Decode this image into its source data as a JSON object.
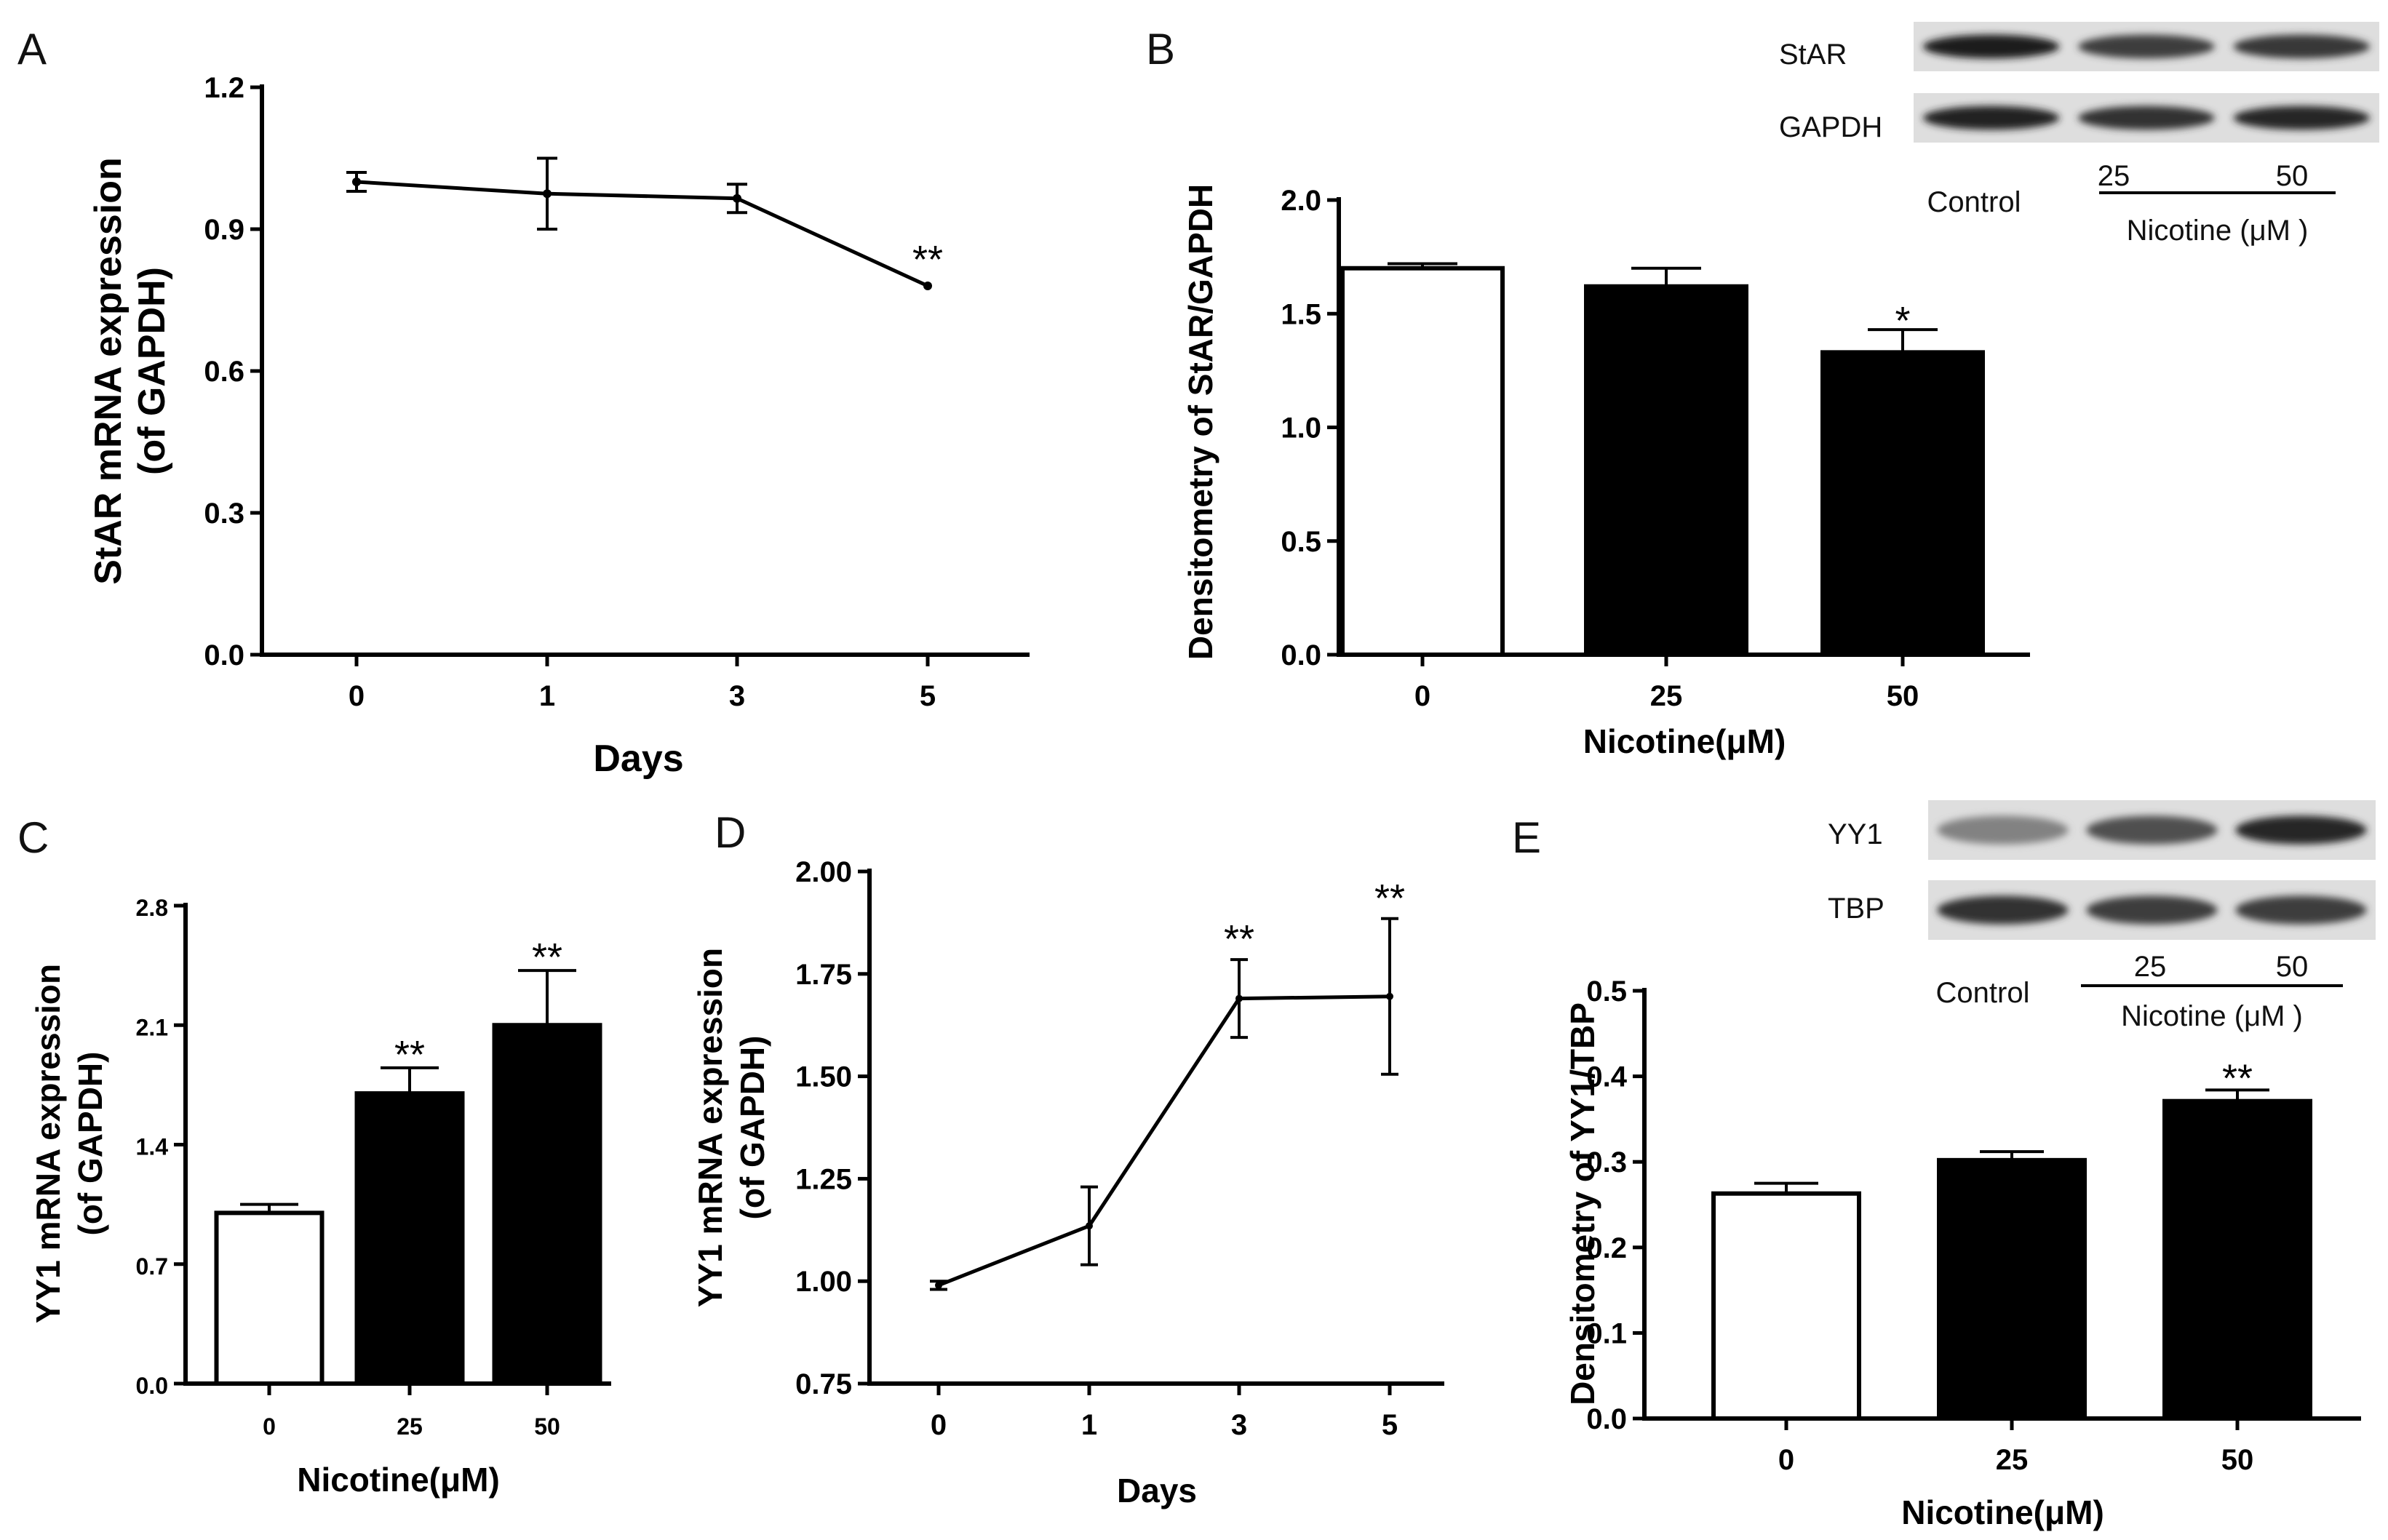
{
  "chart_data": [
    {
      "id": "A",
      "panel_letter": "A",
      "type": "line",
      "x": [
        "0",
        "1",
        "3",
        "5"
      ],
      "values": [
        1.0,
        0.975,
        0.965,
        0.78
      ],
      "errors": [
        0.02,
        0.075,
        0.03,
        0.0
      ],
      "significance": [
        "",
        "",
        "",
        "**"
      ],
      "ylim": [
        0,
        1.2
      ],
      "yticks": [
        "0.0",
        "0.3",
        "0.6",
        "0.9",
        "1.2"
      ],
      "ylabel": [
        "StAR mRNA expression",
        "(of GAPDH)"
      ],
      "xlabel": "Days",
      "colors": [
        "#000000",
        "#000000",
        "#000000",
        "#000000"
      ]
    },
    {
      "id": "B",
      "panel_letter": "B",
      "type": "bar",
      "categories": [
        "0",
        "25",
        "50"
      ],
      "values": [
        1.7,
        1.62,
        1.33
      ],
      "errors": [
        0.02,
        0.08,
        0.1
      ],
      "significance": [
        "",
        "",
        "*"
      ],
      "ylim": [
        0,
        2.0
      ],
      "yticks": [
        "0.0",
        "0.5",
        "1.0",
        "1.5",
        "2.0"
      ],
      "ylabel": [
        "Densitometry of StAR/GAPDH"
      ],
      "xlabel": "Nicotine(μM)",
      "colors": [
        "#ffffff",
        "#000000",
        "#000000"
      ]
    },
    {
      "id": "C",
      "panel_letter": "C",
      "type": "bar",
      "categories": [
        "0",
        "25",
        "50"
      ],
      "values": [
        1.0,
        1.7,
        2.1
      ],
      "errors": [
        0.05,
        0.15,
        0.32
      ],
      "significance": [
        "",
        "**",
        "**"
      ],
      "ylim": [
        0,
        2.8
      ],
      "yticks": [
        "0.0",
        "0.7",
        "1.4",
        "2.1",
        "2.8"
      ],
      "ylabel": [
        "YY1 mRNA expression",
        "(of GAPDH)"
      ],
      "xlabel": "Nicotine(μM)",
      "colors": [
        "#ffffff",
        "#000000",
        "#000000"
      ]
    },
    {
      "id": "D",
      "panel_letter": "D",
      "type": "line",
      "x": [
        "0",
        "1",
        "3",
        "5"
      ],
      "values": [
        0.99,
        1.135,
        1.69,
        1.695
      ],
      "errors": [
        0.01,
        0.095,
        0.095,
        0.19
      ],
      "significance": [
        "",
        "",
        "**",
        "**"
      ],
      "ylim": [
        0.75,
        2.0
      ],
      "yticks": [
        "0.75",
        "1.00",
        "1.25",
        "1.50",
        "1.75",
        "2.00"
      ],
      "ylabel": [
        "YY1 mRNA expression",
        "(of GAPDH)"
      ],
      "xlabel": "Days",
      "colors": [
        "#000000",
        "#000000",
        "#000000",
        "#000000"
      ]
    },
    {
      "id": "E",
      "panel_letter": "E",
      "type": "bar",
      "categories": [
        "0",
        "25",
        "50"
      ],
      "values": [
        0.263,
        0.302,
        0.371
      ],
      "errors": [
        0.012,
        0.01,
        0.013
      ],
      "significance": [
        "",
        "",
        "**"
      ],
      "ylim": [
        0,
        0.5
      ],
      "yticks": [
        "0.0",
        "0.1",
        "0.2",
        "0.3",
        "0.4",
        "0.5"
      ],
      "ylabel": [
        "Densitometry of YY1/TBP"
      ],
      "xlabel": "Nicotine(μM)",
      "colors": [
        "#ffffff",
        "#000000",
        "#000000"
      ]
    }
  ],
  "blots": [
    {
      "id": "B",
      "rows": [
        "StAR",
        "GAPDH"
      ],
      "lanes": [
        "Control",
        "25",
        "50"
      ],
      "treatment": "Nicotine (μM )",
      "band_intensity": [
        [
          0.95,
          0.8,
          0.82
        ],
        [
          0.92,
          0.85,
          0.9
        ]
      ]
    },
    {
      "id": "E",
      "rows": [
        "YY1",
        "TBP"
      ],
      "lanes": [
        "Control",
        "25",
        "50"
      ],
      "treatment": "Nicotine (μM )",
      "band_intensity": [
        [
          0.45,
          0.7,
          0.9
        ],
        [
          0.85,
          0.8,
          0.8
        ]
      ]
    }
  ]
}
